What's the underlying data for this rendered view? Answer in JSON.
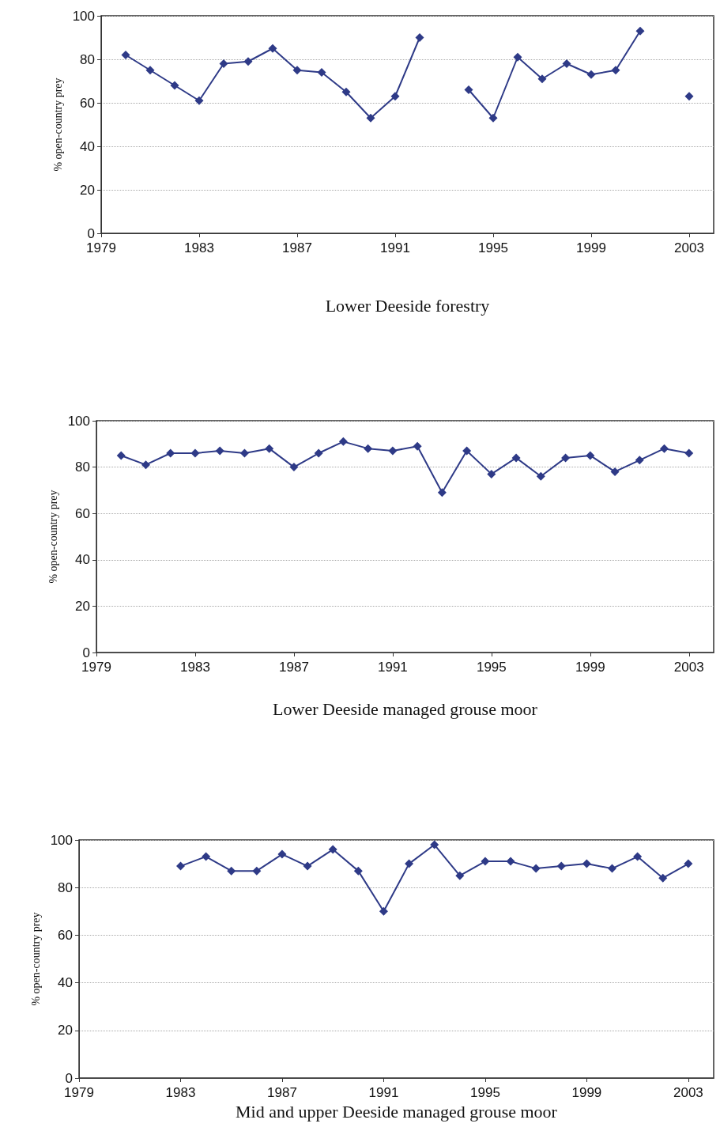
{
  "chart_data": [
    {
      "type": "line",
      "xlabel": "Lower Deeside forestry",
      "ylabel": "% open-country prey",
      "color": "#2e3a87",
      "marker": "diamond",
      "grid": "y",
      "x": [
        1980,
        1981,
        1982,
        1983,
        1984,
        1985,
        1986,
        1987,
        1988,
        1989,
        1990,
        1991,
        1992,
        1993,
        1994,
        1995,
        1996,
        1997,
        1998,
        1999,
        2000,
        2001,
        2002,
        2003
      ],
      "values": [
        82,
        75,
        68,
        61,
        78,
        79,
        85,
        75,
        74,
        65,
        53,
        63,
        90,
        null,
        66,
        53,
        81,
        71,
        78,
        73,
        75,
        93,
        null,
        63
      ],
      "xlim": [
        1979,
        2004
      ],
      "xticks": [
        1979,
        1983,
        1987,
        1991,
        1995,
        1999,
        2003
      ],
      "ylim": [
        0,
        100
      ],
      "yticks": [
        0,
        20,
        40,
        60,
        80,
        100
      ]
    },
    {
      "type": "line",
      "xlabel": "Lower Deeside managed grouse moor",
      "ylabel": "% open-country prey",
      "color": "#2e3a87",
      "marker": "diamond",
      "grid": "y",
      "x": [
        1980,
        1981,
        1982,
        1983,
        1984,
        1985,
        1986,
        1987,
        1988,
        1989,
        1990,
        1991,
        1992,
        1993,
        1994,
        1995,
        1996,
        1997,
        1998,
        1999,
        2000,
        2001,
        2002,
        2003
      ],
      "values": [
        85,
        81,
        86,
        86,
        87,
        86,
        88,
        80,
        86,
        91,
        88,
        87,
        89,
        69,
        87,
        77,
        84,
        76,
        84,
        85,
        78,
        83,
        88,
        86
      ],
      "xlim": [
        1979,
        2004
      ],
      "xticks": [
        1979,
        1983,
        1987,
        1991,
        1995,
        1999,
        2003
      ],
      "ylim": [
        0,
        100
      ],
      "yticks": [
        0,
        20,
        40,
        60,
        80,
        100
      ]
    },
    {
      "type": "line",
      "xlabel": "Mid and upper Deeside managed grouse moor",
      "ylabel": "% open-country prey",
      "color": "#2e3a87",
      "marker": "diamond",
      "grid": "y",
      "x": [
        1983,
        1984,
        1985,
        1986,
        1987,
        1988,
        1989,
        1990,
        1991,
        1992,
        1993,
        1994,
        1995,
        1996,
        1997,
        1998,
        1999,
        2000,
        2001,
        2002,
        2003
      ],
      "values": [
        89,
        93,
        87,
        87,
        94,
        89,
        96,
        87,
        70,
        90,
        98,
        85,
        91,
        91,
        88,
        89,
        90,
        88,
        93,
        84,
        90
      ],
      "xlim": [
        1979,
        2004
      ],
      "xticks": [
        1979,
        1983,
        1987,
        1991,
        1995,
        1999,
        2003
      ],
      "ylim": [
        0,
        100
      ],
      "yticks": [
        0,
        20,
        40,
        60,
        80,
        100
      ]
    }
  ]
}
